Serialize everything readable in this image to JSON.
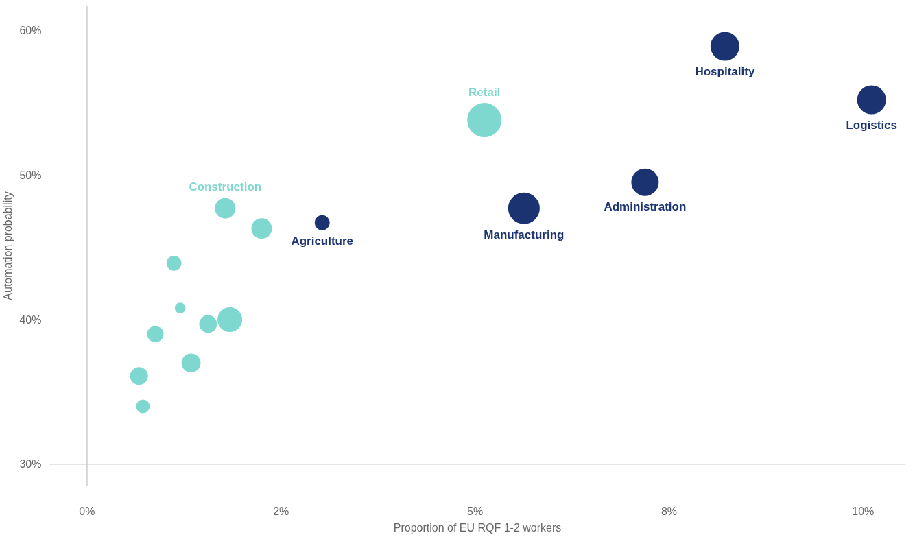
{
  "chart_data": {
    "type": "bubble",
    "xlabel": "Proportion of EU RQF 1-2 workers",
    "ylabel": "Automation probability",
    "xlim": [
      -0.49,
      10.55
    ],
    "ylim": [
      28.5,
      61.7
    ],
    "xticks": [
      {
        "value": 0,
        "label": "0%"
      },
      {
        "value": 2.5,
        "label": "2%"
      },
      {
        "value": 5,
        "label": "5%"
      },
      {
        "value": 7.5,
        "label": "8%"
      },
      {
        "value": 10,
        "label": "10%"
      }
    ],
    "yticks": [
      {
        "value": 30,
        "label": "30%"
      },
      {
        "value": 40,
        "label": "40%"
      },
      {
        "value": 50,
        "label": "50%"
      },
      {
        "value": 60,
        "label": "60%"
      }
    ],
    "series": [
      {
        "color": "#7fd8cf",
        "x": [
          1.78,
          2.25,
          1.12,
          1.2,
          1.56,
          1.84,
          0.88,
          1.34,
          0.67,
          0.72,
          5.12
        ],
        "values": [
          47.7,
          46.3,
          43.9,
          40.8,
          39.7,
          40.0,
          39.0,
          37.0,
          36.1,
          34.0,
          53.8
        ],
        "sizes": [
          0.36,
          0.36,
          0.19,
          0.1,
          0.27,
          0.52,
          0.23,
          0.31,
          0.27,
          0.16,
          1
        ]
      },
      {
        "color": "#1b3370",
        "x": [
          3.03,
          5.63,
          7.19,
          8.22,
          10.11
        ],
        "values": [
          46.7,
          47.7,
          49.5,
          58.9,
          55.2
        ],
        "sizes": [
          0.19,
          0.85,
          0.64,
          0.71,
          0.71
        ]
      }
    ],
    "annotations": [
      {
        "text": "Retail",
        "x": 5.12,
        "y": 53.8
      },
      {
        "text": "Construction",
        "x": 1.78,
        "y": 47.7
      },
      {
        "text": "Agriculture",
        "x": 3.03,
        "y": 46.7
      },
      {
        "text": "Manufacturing",
        "x": 5.63,
        "y": 47.7
      },
      {
        "text": "Administration",
        "x": 7.19,
        "y": 49.5
      },
      {
        "text": "Hospitality",
        "x": 8.22,
        "y": 58.9
      },
      {
        "text": "Logistics",
        "x": 10.11,
        "y": 55.2
      }
    ],
    "ref_lines": [
      {
        "axis": "x",
        "value": 0,
        "color": "#cccccc"
      },
      {
        "axis": "y",
        "value": 30,
        "color": "#cccccc"
      }
    ],
    "grid": false
  }
}
